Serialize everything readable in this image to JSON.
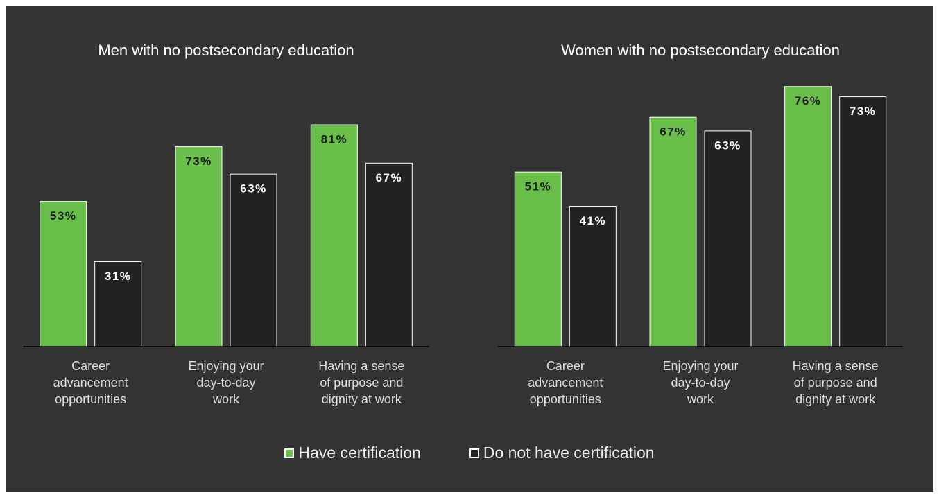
{
  "chart_data": [
    {
      "type": "bar",
      "title": "Men with no postsecondary education",
      "categories": [
        "Career\nadvancement\nopportunities",
        "Enjoying your\nday-to-day\nwork",
        "Having a sense\nof purpose and\ndignity at work"
      ],
      "series": [
        {
          "name": "Have certification",
          "color": "#6abf4b",
          "edgecolor": "#ffffff",
          "values": [
            53,
            73,
            81
          ],
          "value_labels": [
            "53%",
            "73%",
            "81%"
          ]
        },
        {
          "name": "Do not have certification",
          "color": "#222222",
          "edgecolor": "#ffffff",
          "values": [
            31,
            63,
            67
          ],
          "value_labels": [
            "31%",
            "63%",
            "67%"
          ]
        }
      ],
      "ylim": [
        0,
        100
      ]
    },
    {
      "type": "bar",
      "title": "Women with no postsecondary education",
      "categories": [
        "Career\nadvancement\nopportunities",
        "Enjoying your\nday-to-day\nwork",
        "Having a sense\nof purpose and\ndignity at work"
      ],
      "series": [
        {
          "name": "Have certification",
          "color": "#6abf4b",
          "edgecolor": "#ffffff",
          "values": [
            51,
            67,
            76
          ],
          "value_labels": [
            "51%",
            "67%",
            "76%"
          ]
        },
        {
          "name": "Do not have certification",
          "color": "#222222",
          "edgecolor": "#ffffff",
          "values": [
            41,
            63,
            73
          ],
          "value_labels": [
            "41%",
            "63%",
            "73%"
          ]
        }
      ],
      "ylim": [
        0,
        80
      ]
    }
  ]
}
